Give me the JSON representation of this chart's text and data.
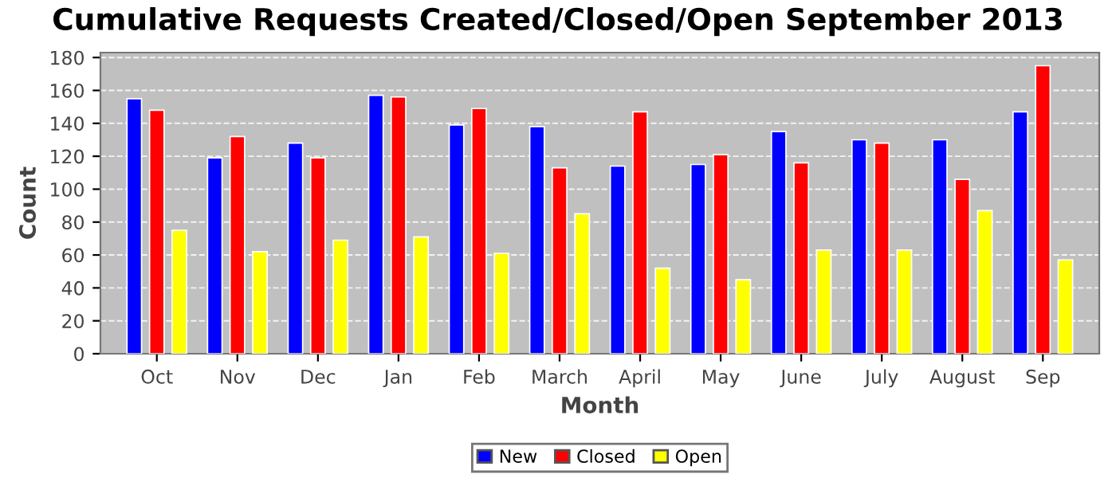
{
  "chart_data": {
    "type": "bar",
    "title": "Cumulative Requests Created/Closed/Open September 2013",
    "xlabel": "Month",
    "ylabel": "Count",
    "categories": [
      "Oct",
      "Nov",
      "Dec",
      "Jan",
      "Feb",
      "March",
      "April",
      "May",
      "June",
      "July",
      "August",
      "Sep"
    ],
    "series": [
      {
        "name": "New",
        "color": "#0000ff",
        "values": [
          155,
          119,
          128,
          157,
          139,
          138,
          114,
          115,
          135,
          130,
          130,
          147
        ]
      },
      {
        "name": "Closed",
        "color": "#ff0000",
        "values": [
          148,
          132,
          119,
          156,
          149,
          113,
          147,
          121,
          116,
          128,
          106,
          175
        ]
      },
      {
        "name": "Open",
        "color": "#ffff00",
        "values": [
          75,
          62,
          69,
          71,
          61,
          85,
          52,
          45,
          63,
          63,
          87,
          57
        ]
      }
    ],
    "ylim": [
      0,
      183
    ],
    "yticks": [
      0,
      20,
      40,
      60,
      80,
      100,
      120,
      140,
      160,
      180
    ],
    "grid": "y",
    "legend": "bottom"
  }
}
